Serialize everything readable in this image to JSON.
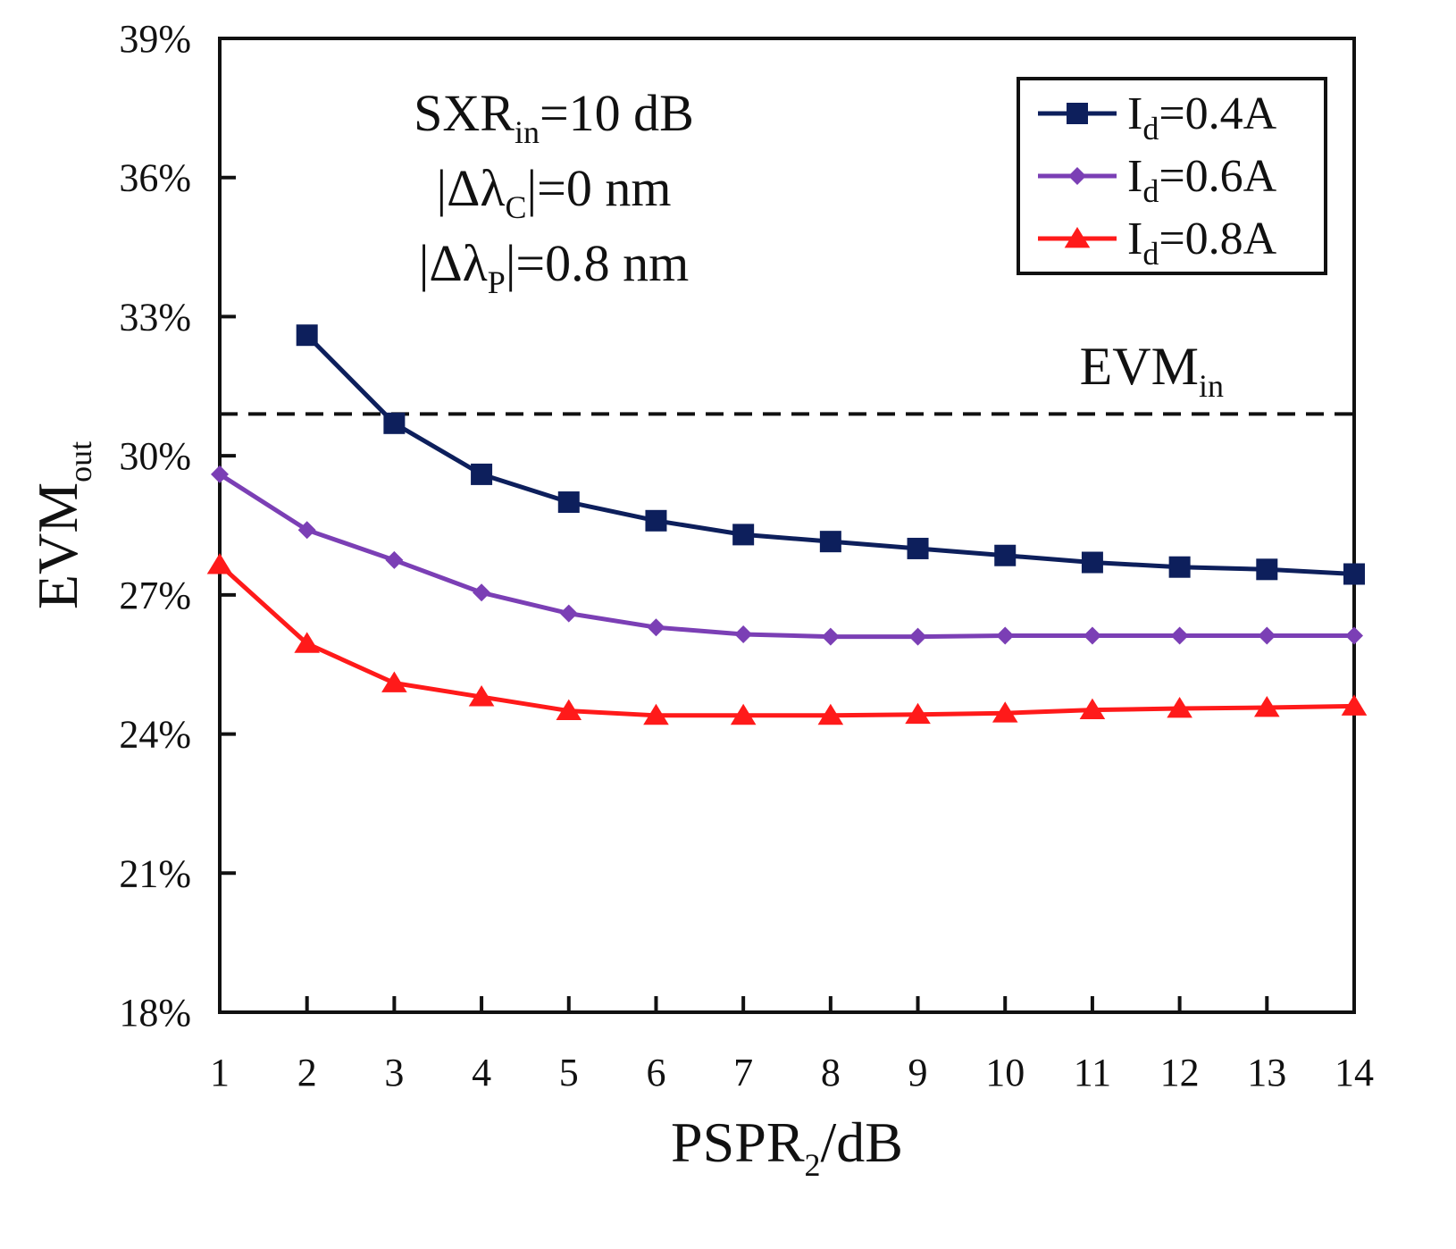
{
  "chart_data": {
    "type": "line",
    "x": [
      1,
      2,
      3,
      4,
      5,
      6,
      7,
      8,
      9,
      10,
      11,
      12,
      13,
      14
    ],
    "xlim": [
      1,
      14
    ],
    "ylim": [
      18,
      39
    ],
    "x_ticks": [
      "1",
      "2",
      "3",
      "4",
      "5",
      "6",
      "7",
      "8",
      "9",
      "10",
      "11",
      "12",
      "13",
      "14"
    ],
    "y_ticks": [
      "18%",
      "21%",
      "24%",
      "27%",
      "30%",
      "33%",
      "36%",
      "39%"
    ],
    "y_tick_values": [
      18,
      21,
      24,
      27,
      30,
      33,
      36,
      39
    ],
    "xlabel": {
      "main": "PSPR",
      "sub": "2",
      "tail": "/dB"
    },
    "ylabel": {
      "main": "EVM",
      "sub": "out"
    },
    "grid": false,
    "legend_position": "top-right",
    "series": [
      {
        "label_main": "I",
        "label_sub": "d",
        "label_tail": "=0.4A",
        "color": "#0d1f5c",
        "marker": "square",
        "values": [
          null,
          32.6,
          30.7,
          29.6,
          29.0,
          28.6,
          28.3,
          28.15,
          28.0,
          27.85,
          27.7,
          27.6,
          27.55,
          27.45
        ]
      },
      {
        "label_main": "I",
        "label_sub": "d",
        "label_tail": "=0.6A",
        "color": "#7b3fb5",
        "marker": "diamond",
        "values": [
          29.6,
          28.4,
          27.75,
          27.05,
          26.6,
          26.3,
          26.15,
          26.1,
          26.1,
          26.12,
          26.12,
          26.12,
          26.12,
          26.12
        ]
      },
      {
        "label_main": "I",
        "label_sub": "d",
        "label_tail": "=0.8A",
        "color": "#ff1a1a",
        "marker": "triangle",
        "values": [
          27.65,
          25.95,
          25.1,
          24.8,
          24.5,
          24.4,
          24.4,
          24.4,
          24.42,
          24.45,
          24.52,
          24.55,
          24.57,
          24.6
        ]
      }
    ],
    "reference_line": {
      "label_main": "EVM",
      "label_sub": "in",
      "value": 30.9,
      "style": "dashed"
    },
    "annotations": [
      {
        "main": "SXR",
        "sub": "in",
        "tail": "=10 dB"
      },
      {
        "main": "|Δλ",
        "sub": "C",
        "tail": "|=0 nm"
      },
      {
        "main": "|Δλ",
        "sub": "P",
        "tail": "|=0.8 nm"
      }
    ]
  }
}
